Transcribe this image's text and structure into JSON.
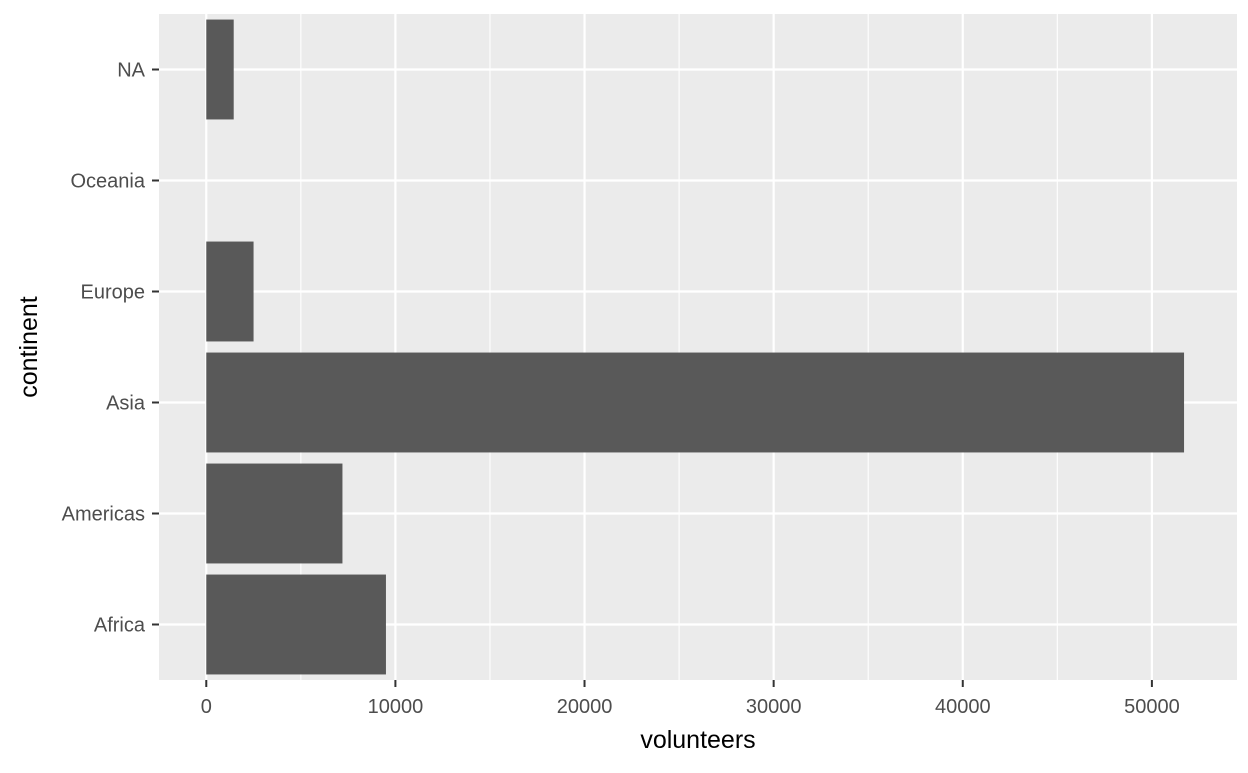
{
  "chart_data": {
    "type": "bar",
    "orientation": "horizontal",
    "title": "",
    "xlabel": "volunteers",
    "ylabel": "continent",
    "categories": [
      "Africa",
      "Americas",
      "Asia",
      "Europe",
      "Oceania",
      "NA"
    ],
    "values": [
      9500,
      7200,
      51700,
      2500,
      0,
      1450
    ],
    "xlim": [
      -2500,
      54500
    ],
    "xticks": [
      0,
      10000,
      20000,
      30000,
      40000,
      50000
    ],
    "xtick_labels": [
      "0",
      "10000",
      "20000",
      "30000",
      "40000",
      "50000"
    ],
    "grid": true,
    "legend": "none",
    "colors": {
      "panel_background": "#EBEBEB",
      "grid_line": "#FFFFFF",
      "bar_fill": "#595959",
      "tick_text": "#4D4D4D",
      "tick_mark": "#333333",
      "axis_title": "#000000"
    }
  }
}
